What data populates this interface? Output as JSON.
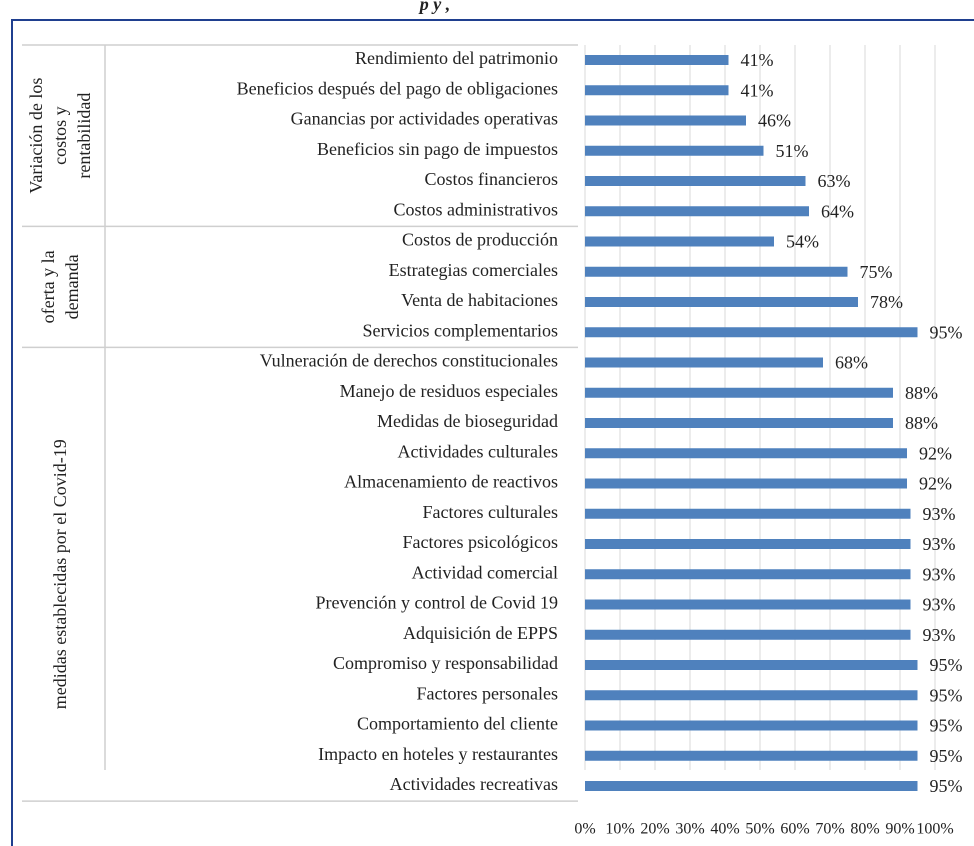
{
  "chart_data": {
    "type": "bar",
    "orientation": "horizontal",
    "title": "p y ,",
    "color": "#4f81bd",
    "xlim": [
      0,
      100
    ],
    "xticks": [
      {
        "value": 0,
        "label": "0%"
      },
      {
        "value": 10,
        "label": "10%"
      },
      {
        "value": 20,
        "label": "20%"
      },
      {
        "value": 30,
        "label": "30%"
      },
      {
        "value": 40,
        "label": "40%"
      },
      {
        "value": 50,
        "label": "50%"
      },
      {
        "value": 60,
        "label": "60%"
      },
      {
        "value": 70,
        "label": "70%"
      },
      {
        "value": 80,
        "label": "80%"
      },
      {
        "value": 90,
        "label": "90%"
      },
      {
        "value": 100,
        "label": "100%"
      }
    ],
    "grid": true,
    "groups": [
      {
        "name": [
          "Variación de los",
          "costos y",
          "rentabilidad"
        ],
        "categories": [
          "Rendimiento del patrimonio",
          "Beneficios después del pago de obligaciones",
          "Ganancias por actividades operativas",
          "Beneficios sin pago de impuestos",
          "Costos financieros",
          "Costos administrativos"
        ],
        "values": [
          41,
          41,
          46,
          51,
          63,
          64
        ],
        "value_labels": [
          "41%",
          "41%",
          "46%",
          "51%",
          "63%",
          "64%"
        ]
      },
      {
        "name": [
          "oferta y la",
          "demanda"
        ],
        "categories": [
          "Costos de producción",
          "Estrategias comerciales",
          "Venta de habitaciones",
          "Servicios complementarios"
        ],
        "values": [
          54,
          75,
          78,
          95
        ],
        "value_labels": [
          "54%",
          "75%",
          "78%",
          "95%"
        ]
      },
      {
        "name": [
          "medidas establecidas por el Covid-19"
        ],
        "categories": [
          "Vulneración de derechos constitucionales",
          "Manejo de residuos especiales",
          "Medidas de bioseguridad",
          "Actividades culturales",
          "Almacenamiento de reactivos",
          "Factores culturales",
          "Factores psicológicos",
          "Actividad comercial",
          "Prevención y control de Covid 19",
          "Adquisición de EPPS",
          "Compromiso y responsabilidad",
          "Factores personales",
          "Comportamiento del cliente",
          "Impacto en hoteles y restaurantes",
          "Actividades recreativas"
        ],
        "values": [
          68,
          88,
          88,
          92,
          92,
          93,
          93,
          93,
          93,
          93,
          95,
          95,
          95,
          95,
          95
        ],
        "value_labels": [
          "68%",
          "88%",
          "88%",
          "92%",
          "92%",
          "93%",
          "93%",
          "93%",
          "93%",
          "93%",
          "95%",
          "95%",
          "95%",
          "95%",
          "95%"
        ]
      }
    ]
  }
}
